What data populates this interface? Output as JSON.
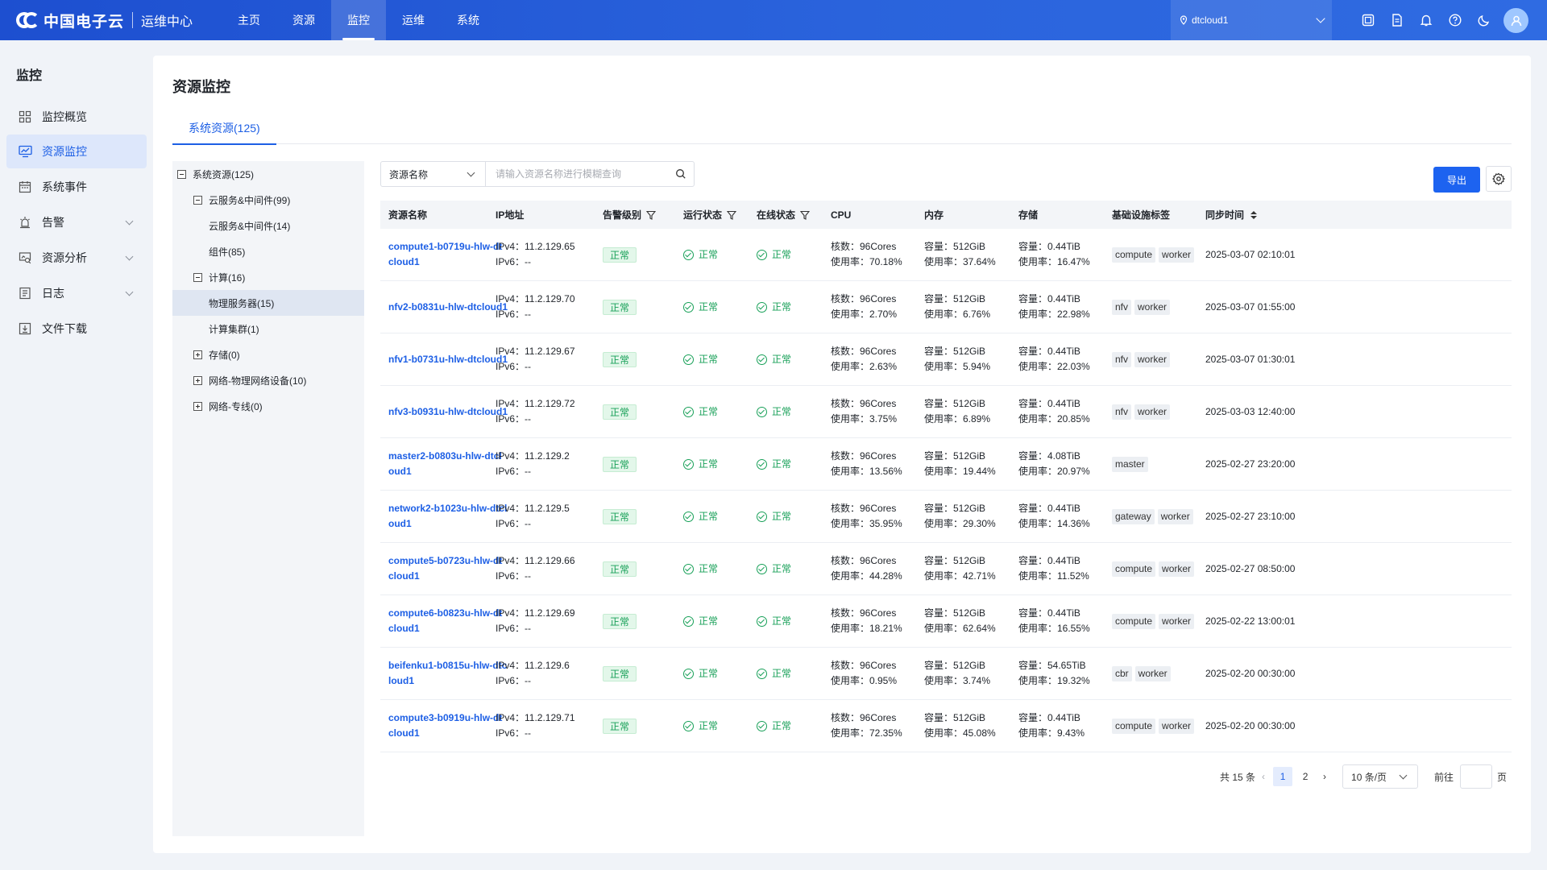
{
  "brand": {
    "name": "中国电子云",
    "subtitle": "运维中心"
  },
  "nav": [
    {
      "label": "主页"
    },
    {
      "label": "资源"
    },
    {
      "label": "监控",
      "active": true
    },
    {
      "label": "运维"
    },
    {
      "label": "系统"
    }
  ],
  "tenant": {
    "name": "dtcloud1"
  },
  "top_icons": [
    "screen-icon",
    "document-icon",
    "bell-icon",
    "help-icon",
    "moon-icon",
    "user-avatar-icon"
  ],
  "sidebar": {
    "title": "监控",
    "items": [
      {
        "label": "监控概览",
        "icon": "grid-icon"
      },
      {
        "label": "资源监控",
        "icon": "monitor-chart-icon",
        "active": true
      },
      {
        "label": "系统事件",
        "icon": "calendar-icon"
      },
      {
        "label": "告警",
        "icon": "alarm-icon",
        "expandable": true
      },
      {
        "label": "资源分析",
        "icon": "analysis-icon",
        "expandable": true
      },
      {
        "label": "日志",
        "icon": "log-icon",
        "expandable": true
      },
      {
        "label": "文件下载",
        "icon": "download-icon"
      }
    ]
  },
  "page": {
    "title": "资源监控",
    "tab": "系统资源(125)"
  },
  "tree": [
    {
      "label": "系统资源(125)",
      "level": 0,
      "toggle": "minus"
    },
    {
      "label": "云服务&中间件(99)",
      "level": 1,
      "toggle": "minus"
    },
    {
      "label": "云服务&中间件(14)",
      "level": 2
    },
    {
      "label": "组件(85)",
      "level": 2
    },
    {
      "label": "计算(16)",
      "level": 1,
      "toggle": "minus"
    },
    {
      "label": "物理服务器(15)",
      "level": 2,
      "selected": true
    },
    {
      "label": "计算集群(1)",
      "level": 2
    },
    {
      "label": "存储(0)",
      "level": 1,
      "toggle": "plus"
    },
    {
      "label": "网络-物理网络设备(10)",
      "level": 1,
      "toggle": "plus"
    },
    {
      "label": "网络-专线(0)",
      "level": 1,
      "toggle": "plus"
    }
  ],
  "search": {
    "field": "资源名称",
    "placeholder": "请输入资源名称进行模糊查询"
  },
  "toolbar": {
    "export_label": "导出"
  },
  "table": {
    "columns": [
      "资源名称",
      "IP地址",
      "告警级别",
      "运行状态",
      "在线状态",
      "CPU",
      "内存",
      "存储",
      "基础设施标签",
      "同步时间"
    ],
    "rows": [
      {
        "name": "compute1-b0719u-hlw-dtcloud1",
        "ipv4": "IPv4：11.2.129.65",
        "ipv6": "IPv6：--",
        "alert": "正常",
        "run": "正常",
        "online": "正常",
        "cpu_cores": "核数：96Cores",
        "cpu_usage": "使用率：70.18%",
        "mem_cap": "容量：512GiB",
        "mem_usage": "使用率：37.64%",
        "sto_cap": "容量：0.44TiB",
        "sto_usage": "使用率：16.47%",
        "tags": [
          "compute",
          "worker"
        ],
        "sync": "2025-03-07 02:10:01"
      },
      {
        "name": "nfv2-b0831u-hlw-dtcloud1",
        "ipv4": "IPv4：11.2.129.70",
        "ipv6": "IPv6：--",
        "alert": "正常",
        "run": "正常",
        "online": "正常",
        "cpu_cores": "核数：96Cores",
        "cpu_usage": "使用率：2.70%",
        "mem_cap": "容量：512GiB",
        "mem_usage": "使用率：6.76%",
        "sto_cap": "容量：0.44TiB",
        "sto_usage": "使用率：22.98%",
        "tags": [
          "nfv",
          "worker"
        ],
        "sync": "2025-03-07 01:55:00"
      },
      {
        "name": "nfv1-b0731u-hlw-dtcloud1",
        "ipv4": "IPv4：11.2.129.67",
        "ipv6": "IPv6：--",
        "alert": "正常",
        "run": "正常",
        "online": "正常",
        "cpu_cores": "核数：96Cores",
        "cpu_usage": "使用率：2.63%",
        "mem_cap": "容量：512GiB",
        "mem_usage": "使用率：5.94%",
        "sto_cap": "容量：0.44TiB",
        "sto_usage": "使用率：22.03%",
        "tags": [
          "nfv",
          "worker"
        ],
        "sync": "2025-03-07 01:30:01"
      },
      {
        "name": "nfv3-b0931u-hlw-dtcloud1",
        "ipv4": "IPv4：11.2.129.72",
        "ipv6": "IPv6：--",
        "alert": "正常",
        "run": "正常",
        "online": "正常",
        "cpu_cores": "核数：96Cores",
        "cpu_usage": "使用率：3.75%",
        "mem_cap": "容量：512GiB",
        "mem_usage": "使用率：6.89%",
        "sto_cap": "容量：0.44TiB",
        "sto_usage": "使用率：20.85%",
        "tags": [
          "nfv",
          "worker"
        ],
        "sync": "2025-03-03 12:40:00"
      },
      {
        "name": "master2-b0803u-hlw-dtcloud1",
        "ipv4": "IPv4：11.2.129.2",
        "ipv6": "IPv6：--",
        "alert": "正常",
        "run": "正常",
        "online": "正常",
        "cpu_cores": "核数：96Cores",
        "cpu_usage": "使用率：13.56%",
        "mem_cap": "容量：512GiB",
        "mem_usage": "使用率：19.44%",
        "sto_cap": "容量：4.08TiB",
        "sto_usage": "使用率：20.97%",
        "tags": [
          "master"
        ],
        "sync": "2025-02-27 23:20:00"
      },
      {
        "name": "network2-b1023u-hlw-dtcloud1",
        "ipv4": "IPv4：11.2.129.5",
        "ipv6": "IPv6：--",
        "alert": "正常",
        "run": "正常",
        "online": "正常",
        "cpu_cores": "核数：96Cores",
        "cpu_usage": "使用率：35.95%",
        "mem_cap": "容量：512GiB",
        "mem_usage": "使用率：29.30%",
        "sto_cap": "容量：0.44TiB",
        "sto_usage": "使用率：14.36%",
        "tags": [
          "gateway",
          "worker"
        ],
        "sync": "2025-02-27 23:10:00"
      },
      {
        "name": "compute5-b0723u-hlw-dtcloud1",
        "ipv4": "IPv4：11.2.129.66",
        "ipv6": "IPv6：--",
        "alert": "正常",
        "run": "正常",
        "online": "正常",
        "cpu_cores": "核数：96Cores",
        "cpu_usage": "使用率：44.28%",
        "mem_cap": "容量：512GiB",
        "mem_usage": "使用率：42.71%",
        "sto_cap": "容量：0.44TiB",
        "sto_usage": "使用率：11.52%",
        "tags": [
          "compute",
          "worker"
        ],
        "sync": "2025-02-27 08:50:00"
      },
      {
        "name": "compute6-b0823u-hlw-dtcloud1",
        "ipv4": "IPv4：11.2.129.69",
        "ipv6": "IPv6：--",
        "alert": "正常",
        "run": "正常",
        "online": "正常",
        "cpu_cores": "核数：96Cores",
        "cpu_usage": "使用率：18.21%",
        "mem_cap": "容量：512GiB",
        "mem_usage": "使用率：62.64%",
        "sto_cap": "容量：0.44TiB",
        "sto_usage": "使用率：16.55%",
        "tags": [
          "compute",
          "worker"
        ],
        "sync": "2025-02-22 13:00:01"
      },
      {
        "name": "beifenku1-b0815u-hlw-dtcloud1",
        "ipv4": "IPv4：11.2.129.6",
        "ipv6": "IPv6：--",
        "alert": "正常",
        "run": "正常",
        "online": "正常",
        "cpu_cores": "核数：96Cores",
        "cpu_usage": "使用率：0.95%",
        "mem_cap": "容量：512GiB",
        "mem_usage": "使用率：3.74%",
        "sto_cap": "容量：54.65TiB",
        "sto_usage": "使用率：19.32%",
        "tags": [
          "cbr",
          "worker"
        ],
        "sync": "2025-02-20 00:30:00"
      },
      {
        "name": "compute3-b0919u-hlw-dtcloud1",
        "ipv4": "IPv4：11.2.129.71",
        "ipv6": "IPv6：--",
        "alert": "正常",
        "run": "正常",
        "online": "正常",
        "cpu_cores": "核数：96Cores",
        "cpu_usage": "使用率：72.35%",
        "mem_cap": "容量：512GiB",
        "mem_usage": "使用率：45.08%",
        "sto_cap": "容量：0.44TiB",
        "sto_usage": "使用率：9.43%",
        "tags": [
          "compute",
          "worker"
        ],
        "sync": "2025-02-20 00:30:00"
      }
    ]
  },
  "pagination": {
    "total": "共 15 条",
    "pages": [
      "1",
      "2"
    ],
    "current": "1",
    "page_size": "10 条/页",
    "goto_label": "前往",
    "page_suffix": "页"
  },
  "colors": {
    "primary": "#1d5fe5",
    "topbar": "#2a63dc",
    "success": "#18a058"
  }
}
